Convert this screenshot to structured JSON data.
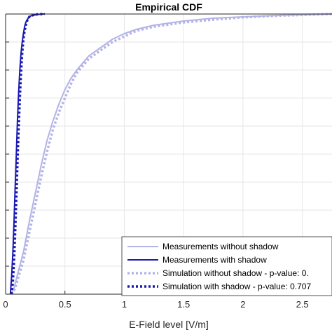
{
  "chart_data": {
    "type": "line",
    "title": "Empirical CDF",
    "xlabel": "E-Field level [V/m]",
    "ylabel": "",
    "xlim": [
      0,
      2.75
    ],
    "ylim": [
      0,
      1
    ],
    "grid": true,
    "x_ticks": [
      "0",
      "0.5",
      "1",
      "1.5",
      "2",
      "2.5"
    ],
    "x_tick_values": [
      0,
      0.5,
      1,
      1.5,
      2,
      2.5
    ],
    "legend_placement": "bottom-right",
    "series": [
      {
        "name": "Measurements without shadow",
        "color": "#b3b3e6",
        "style": "solid",
        "x": [
          0.04,
          0.07,
          0.1,
          0.15,
          0.2,
          0.25,
          0.3,
          0.35,
          0.4,
          0.45,
          0.5,
          0.55,
          0.6,
          0.7,
          0.8,
          0.9,
          1.0,
          1.1,
          1.25,
          1.5,
          1.75,
          2.0,
          2.3,
          2.75
        ],
        "y": [
          0.0,
          0.02,
          0.07,
          0.15,
          0.26,
          0.36,
          0.46,
          0.55,
          0.62,
          0.68,
          0.73,
          0.77,
          0.8,
          0.85,
          0.88,
          0.91,
          0.93,
          0.945,
          0.96,
          0.975,
          0.985,
          0.99,
          0.995,
          1.0
        ]
      },
      {
        "name": "Measurements with shadow",
        "color": "#1a1ab3",
        "style": "solid",
        "x": [
          0.04,
          0.05,
          0.06,
          0.07,
          0.08,
          0.09,
          0.1,
          0.11,
          0.12,
          0.13,
          0.14,
          0.15,
          0.16,
          0.17,
          0.19,
          0.21,
          0.25,
          0.3,
          0.33
        ],
        "y": [
          0.0,
          0.06,
          0.14,
          0.25,
          0.38,
          0.5,
          0.62,
          0.72,
          0.8,
          0.86,
          0.9,
          0.93,
          0.955,
          0.97,
          0.985,
          0.993,
          0.997,
          1.0,
          1.0
        ]
      },
      {
        "name": "Simulation without shadow - p-value: 0.",
        "color": "#b3b3e6",
        "style": "dotted",
        "x": [
          0.05,
          0.08,
          0.1,
          0.15,
          0.2,
          0.25,
          0.3,
          0.35,
          0.4,
          0.45,
          0.5,
          0.55,
          0.6,
          0.7,
          0.8,
          0.9,
          1.0,
          1.1,
          1.25,
          1.5,
          1.75,
          2.0,
          2.3,
          2.75
        ],
        "y": [
          0.0,
          0.02,
          0.05,
          0.12,
          0.22,
          0.32,
          0.42,
          0.51,
          0.59,
          0.65,
          0.7,
          0.75,
          0.79,
          0.84,
          0.87,
          0.9,
          0.92,
          0.94,
          0.955,
          0.97,
          0.98,
          0.988,
          0.994,
          1.0
        ]
      },
      {
        "name": "Simulation with shadow - p-value: 0.707",
        "color": "#1a1ab3",
        "style": "dotted",
        "x": [
          0.05,
          0.06,
          0.07,
          0.08,
          0.09,
          0.1,
          0.11,
          0.12,
          0.13,
          0.14,
          0.15,
          0.16,
          0.17,
          0.18,
          0.2,
          0.23,
          0.27,
          0.33
        ],
        "y": [
          0.0,
          0.04,
          0.11,
          0.22,
          0.34,
          0.47,
          0.59,
          0.7,
          0.79,
          0.86,
          0.91,
          0.94,
          0.96,
          0.975,
          0.99,
          0.996,
          0.999,
          1.0
        ]
      }
    ]
  }
}
